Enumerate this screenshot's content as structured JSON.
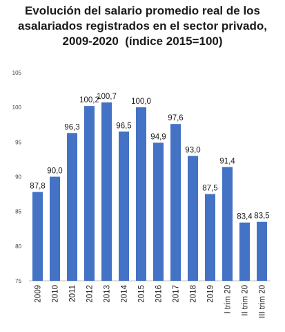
{
  "chart_data": {
    "type": "bar",
    "title_lines": [
      "Evolución del salario promedio real de los",
      "asalariados registrados en el sector privado,",
      "2009-2020  (índice 2015=100)"
    ],
    "categories": [
      "2009",
      "2010",
      "2011",
      "2012",
      "2013",
      "2014",
      "2015",
      "2016",
      "2017",
      "2018",
      "2019",
      "I trim 20",
      "II trim 20",
      "III trim 20"
    ],
    "values": [
      87.8,
      90.0,
      96.3,
      100.2,
      100.7,
      96.5,
      100.0,
      94.9,
      97.6,
      93.0,
      87.5,
      91.4,
      83.4,
      83.5
    ],
    "value_labels": [
      "87,8",
      "90,0",
      "96,3",
      "100,2",
      "100,7",
      "96,5",
      "100,0",
      "94,9",
      "97,6",
      "93,0",
      "87,5",
      "91,4",
      "83,4",
      "83,5"
    ],
    "ylim": [
      75,
      105
    ],
    "yticks": [
      75,
      80,
      85,
      90,
      95,
      100,
      105
    ],
    "bar_color": "#4472c4",
    "grid": false,
    "legend": "none",
    "xlabel": "",
    "ylabel": ""
  }
}
